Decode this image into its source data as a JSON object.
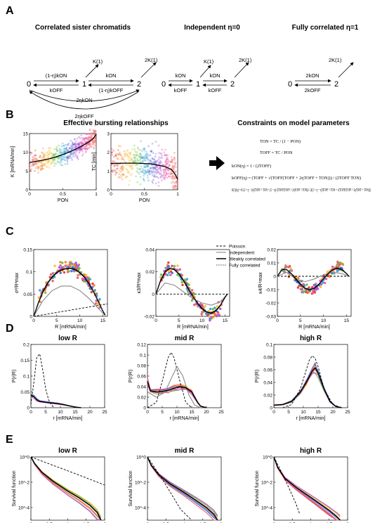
{
  "panels": {
    "a": {
      "label": "A",
      "titles": [
        "Correlated sister chromatids",
        "Independent η=0",
        "Fully correlated η=1"
      ],
      "states": [
        "0",
        "1",
        "2"
      ],
      "rates": {
        "k01_corr": "(1-η)kON",
        "k10": "kOFF",
        "k12": "kON",
        "k21_corr": "(1-η)kOFF",
        "k02_corr": "2ηkON",
        "k20_corr": "2ηkOFF",
        "K1": "K(1)",
        "K2": "2K(1)",
        "k_on": "kON",
        "k_off": "kOFF",
        "k2on": "2kON",
        "k2off": "2kOFF"
      }
    },
    "b": {
      "label": "B",
      "title_left": "Effective bursting relationships",
      "title_right": "Constraints on model parameters",
      "left_ylabel": "K [mRNA/min]",
      "right_ylabel": "TC [min]",
      "xlabel": "PON",
      "eq1": "TON = TC / (1 − PON)",
      "eq2": "TOFF = TC / PON",
      "eq3": "kON(η) = 1 / (2TOFF)",
      "eq4": "kOFF(η) = (TOFF + √(TOFF(TOFF + 2ηTOFF + TON))) / (2TOFF TON)",
      "eq5": "K(1)(η) = K (2 + η − 2η²)TOFF + TON + (2 − η)√(TOFF(TOFF + 2ηTOFF + TON)) / 2((1 + η − η²)TOFF + TON + √(TOFF(TOFF + 2ηTOFF + TON)))"
    },
    "c": {
      "label": "C",
      "ylabels": [
        "σ²/R²max",
        "κ3/R³max",
        "κ4/R⁴max"
      ],
      "xlabel": "R [mRNA/min]",
      "legend": [
        "Poisson",
        "Independent",
        "Weakly correlated",
        "Fully correlated"
      ]
    },
    "d": {
      "label": "D",
      "titles": [
        "low R",
        "mid R",
        "high R"
      ],
      "ylabel": "P(r|R)",
      "xlabel": "r [mRNA/min]"
    },
    "e": {
      "label": "E",
      "titles": [
        "low R",
        "mid R",
        "high R"
      ],
      "ylabel": "Survival function",
      "xlabel": "Inter-initiation interval [min]"
    }
  },
  "chart_data": [
    {
      "type": "scatter",
      "panel": "B-left",
      "xlabel": "PON",
      "ylabel": "K [mRNA/min]",
      "xlim": [
        0,
        1
      ],
      "ylim": [
        0,
        15
      ],
      "xticks": [
        0,
        0.5,
        1
      ],
      "yticks": [
        0,
        5,
        10,
        15
      ],
      "fit": {
        "x": [
          0,
          0.1,
          0.2,
          0.3,
          0.4,
          0.5,
          0.6,
          0.7,
          0.8,
          0.9,
          0.95,
          1
        ],
        "y": [
          7.3,
          7.6,
          7.9,
          8.3,
          8.8,
          9.4,
          10.1,
          10.9,
          11.8,
          12.9,
          13.6,
          14.8
        ]
      }
    },
    {
      "type": "scatter",
      "panel": "B-right",
      "xlabel": "PON",
      "ylabel": "TC [min]",
      "xlim": [
        0,
        1
      ],
      "ylim": [
        0,
        3
      ],
      "xticks": [
        0,
        0.5,
        1
      ],
      "yticks": [
        0,
        1,
        2,
        3
      ],
      "fit": {
        "x": [
          0,
          0.2,
          0.4,
          0.6,
          0.8,
          0.9,
          0.95,
          1
        ],
        "y": [
          1.4,
          1.42,
          1.42,
          1.38,
          1.25,
          1.1,
          0.9,
          0.55
        ]
      }
    },
    {
      "type": "line",
      "panel": "C-variance",
      "xlabel": "R [mRNA/min]",
      "ylabel": "σ²/R²max",
      "xlim": [
        0,
        16
      ],
      "ylim": [
        0,
        0.15
      ],
      "xticks": [
        0,
        5,
        10,
        15
      ],
      "yticks": [
        0,
        0.05,
        0.1,
        0.15
      ],
      "series": [
        {
          "name": "Poisson",
          "x": [
            0,
            16
          ],
          "y": [
            0,
            0.028
          ]
        },
        {
          "name": "Independent",
          "x": [
            0,
            2,
            4,
            6,
            8,
            10,
            12,
            14,
            15.5
          ],
          "y": [
            0,
            0.035,
            0.058,
            0.068,
            0.068,
            0.058,
            0.04,
            0.018,
            0.002
          ]
        },
        {
          "name": "Weakly correlated",
          "x": [
            0,
            1,
            2,
            3,
            4,
            5,
            6,
            7,
            8,
            9,
            10,
            11,
            12,
            13,
            14,
            15,
            15.5
          ],
          "y": [
            0,
            0.03,
            0.055,
            0.074,
            0.088,
            0.098,
            0.104,
            0.107,
            0.108,
            0.105,
            0.098,
            0.088,
            0.073,
            0.055,
            0.034,
            0.012,
            0.003
          ]
        },
        {
          "name": "Fully correlated",
          "x": [
            0,
            1,
            2,
            3,
            4,
            5,
            6,
            7,
            8,
            9,
            10,
            11,
            12,
            13,
            14,
            15,
            15.5
          ],
          "y": [
            0,
            0.032,
            0.058,
            0.077,
            0.091,
            0.1,
            0.106,
            0.11,
            0.111,
            0.108,
            0.101,
            0.09,
            0.075,
            0.056,
            0.035,
            0.012,
            0.003
          ]
        }
      ]
    },
    {
      "type": "line",
      "panel": "C-skew",
      "xlabel": "R [mRNA/min]",
      "ylabel": "κ3/R³max",
      "xlim": [
        0,
        16
      ],
      "ylim": [
        -0.02,
        0.04
      ],
      "xticks": [
        0,
        5,
        10,
        15
      ],
      "yticks": [
        -0.02,
        0,
        0.02,
        0.04
      ],
      "series": [
        {
          "name": "Poisson",
          "x": [
            0,
            16
          ],
          "y": [
            0,
            0
          ]
        },
        {
          "name": "Independent",
          "x": [
            0,
            2,
            4,
            6,
            8,
            10,
            12,
            14,
            15.5
          ],
          "y": [
            0,
            0.01,
            0.008,
            0.002,
            -0.004,
            -0.008,
            -0.01,
            -0.007,
            0
          ]
        },
        {
          "name": "Weakly correlated",
          "x": [
            0,
            1,
            2,
            3,
            4,
            5,
            6,
            7,
            8,
            9,
            10,
            11,
            12,
            13,
            14,
            15,
            15.5
          ],
          "y": [
            0,
            0.012,
            0.02,
            0.023,
            0.022,
            0.018,
            0.012,
            0.005,
            -0.002,
            -0.008,
            -0.013,
            -0.016,
            -0.017,
            -0.015,
            -0.01,
            -0.003,
            0
          ]
        },
        {
          "name": "Fully correlated",
          "x": [
            0,
            1,
            2,
            3,
            4,
            5,
            6,
            7,
            8,
            9,
            10,
            11,
            12,
            13,
            14,
            15,
            15.5
          ],
          "y": [
            0,
            0.013,
            0.021,
            0.024,
            0.023,
            0.019,
            0.013,
            0.006,
            -0.002,
            -0.009,
            -0.014,
            -0.017,
            -0.018,
            -0.016,
            -0.011,
            -0.003,
            0
          ]
        }
      ]
    },
    {
      "type": "line",
      "panel": "C-kurt",
      "xlabel": "R [mRNA/min]",
      "ylabel": "κ4/R⁴max",
      "xlim": [
        0,
        16
      ],
      "ylim": [
        -0.03,
        0.02
      ],
      "xticks": [
        0,
        5,
        10,
        15
      ],
      "yticks": [
        -0.03,
        -0.02,
        -0.01,
        0,
        0.01,
        0.02
      ],
      "series": [
        {
          "name": "Poisson",
          "x": [
            0,
            16
          ],
          "y": [
            0,
            0
          ]
        },
        {
          "name": "Independent",
          "x": [
            0,
            2,
            4,
            6,
            8,
            10,
            12,
            14,
            15.5
          ],
          "y": [
            0,
            0.003,
            -0.002,
            -0.004,
            -0.002,
            0.001,
            0.003,
            0.002,
            0
          ]
        },
        {
          "name": "Weakly correlated",
          "x": [
            0,
            1,
            2,
            3,
            4,
            5,
            6,
            7,
            8,
            9,
            10,
            11,
            12,
            13,
            14,
            15,
            15.5
          ],
          "y": [
            0,
            0.005,
            0.005,
            0.002,
            -0.002,
            -0.006,
            -0.009,
            -0.01,
            -0.009,
            -0.006,
            -0.002,
            0.002,
            0.005,
            0.006,
            0.005,
            0.002,
            0
          ]
        },
        {
          "name": "Fully correlated",
          "x": [
            0,
            1,
            2,
            3,
            4,
            5,
            6,
            7,
            8,
            9,
            10,
            11,
            12,
            13,
            14,
            15,
            15.5
          ],
          "y": [
            0,
            0.006,
            0.005,
            0.002,
            -0.003,
            -0.007,
            -0.01,
            -0.011,
            -0.01,
            -0.007,
            -0.002,
            0.002,
            0.005,
            0.007,
            0.006,
            0.002,
            0
          ]
        }
      ]
    },
    {
      "type": "line",
      "panel": "D-low",
      "xlabel": "r [mRNA/min]",
      "ylabel": "P(r|R)",
      "xlim": [
        0,
        25
      ],
      "ylim": [
        0,
        0.2
      ],
      "xticks": [
        0,
        5,
        10,
        15,
        20,
        25
      ],
      "yticks": [
        0,
        0.05,
        0.1,
        0.15,
        0.2
      ],
      "series": [
        {
          "name": "Poisson",
          "x": [
            0,
            1,
            2,
            3,
            4,
            5,
            6,
            7,
            8
          ],
          "y": [
            0.01,
            0.08,
            0.16,
            0.17,
            0.12,
            0.06,
            0.025,
            0.008,
            0
          ]
        },
        {
          "name": "Weakly correlated",
          "x": [
            0,
            1,
            2,
            3,
            5,
            7,
            9,
            11,
            13,
            15,
            17
          ],
          "y": [
            0.04,
            0.035,
            0.025,
            0.02,
            0.017,
            0.015,
            0.013,
            0.01,
            0.006,
            0.002,
            0
          ]
        }
      ]
    },
    {
      "type": "line",
      "panel": "D-mid",
      "xlabel": "r [mRNA/min]",
      "ylabel": "P(r|R)",
      "xlim": [
        0,
        25
      ],
      "ylim": [
        0,
        0.12
      ],
      "xticks": [
        0,
        5,
        10,
        15,
        20,
        25
      ],
      "yticks": [
        0,
        0.02,
        0.04,
        0.06,
        0.08,
        0.1,
        0.12
      ],
      "series": [
        {
          "name": "Poisson",
          "x": [
            0,
            3,
            5,
            7,
            8,
            9,
            11,
            13,
            15
          ],
          "y": [
            0,
            0.01,
            0.05,
            0.095,
            0.105,
            0.095,
            0.05,
            0.01,
            0
          ]
        },
        {
          "name": "Independent",
          "x": [
            0,
            3,
            6,
            8,
            10,
            12,
            14,
            16,
            18
          ],
          "y": [
            0.03,
            0.02,
            0.03,
            0.055,
            0.078,
            0.06,
            0.025,
            0.005,
            0
          ]
        },
        {
          "name": "Weakly correlated",
          "x": [
            0,
            1,
            3,
            5,
            7,
            9,
            11,
            13,
            15,
            16,
            17,
            18,
            20
          ],
          "y": [
            0.05,
            0.032,
            0.03,
            0.031,
            0.033,
            0.037,
            0.04,
            0.038,
            0.03,
            0.02,
            0.01,
            0.003,
            0
          ]
        }
      ]
    },
    {
      "type": "line",
      "panel": "D-high",
      "xlabel": "r [mRNA/min]",
      "ylabel": "P(r|R)",
      "xlim": [
        0,
        25
      ],
      "ylim": [
        0,
        0.1
      ],
      "xticks": [
        0,
        5,
        10,
        15,
        20,
        25
      ],
      "yticks": [
        0,
        0.02,
        0.04,
        0.06,
        0.08,
        0.1
      ],
      "series": [
        {
          "name": "Poisson",
          "x": [
            3,
            6,
            9,
            11,
            12,
            13,
            14,
            15,
            17,
            20,
            23
          ],
          "y": [
            0,
            0.005,
            0.03,
            0.06,
            0.075,
            0.082,
            0.078,
            0.065,
            0.03,
            0.005,
            0
          ]
        },
        {
          "name": "Weakly correlated",
          "x": [
            0,
            3,
            6,
            9,
            11,
            13,
            14,
            15,
            17,
            19,
            21,
            23
          ],
          "y": [
            0.004,
            0.005,
            0.01,
            0.025,
            0.04,
            0.058,
            0.063,
            0.055,
            0.03,
            0.01,
            0.002,
            0
          ]
        }
      ]
    },
    {
      "type": "line",
      "panel": "E-low",
      "xlabel": "Inter-initiation interval [min]",
      "ylabel": "Survival function",
      "xlim": [
        0,
        2
      ],
      "yscale": "log",
      "xticks": [
        0,
        0.5,
        1,
        1.5,
        2
      ],
      "yticks": [
        "10^0",
        "10^-2",
        "10^-4"
      ],
      "series": [
        {
          "name": "Poisson",
          "x": [
            0,
            0.5,
            1,
            1.5,
            2
          ],
          "y": [
            1,
            0.28,
            0.08,
            0.022,
            0.006
          ]
        },
        {
          "name": "Weakly correlated",
          "x": [
            0,
            0.1,
            0.3,
            0.6,
            1,
            1.3,
            1.6,
            1.8,
            1.9
          ],
          "y": [
            1,
            0.3,
            0.06,
            0.012,
            0.002,
            0.0006,
            0.00015,
            4e-05,
            1e-05
          ]
        }
      ]
    },
    {
      "type": "line",
      "panel": "E-mid",
      "xlabel": "Inter-initiation interval [min]",
      "ylabel": "Survival function",
      "xlim": [
        0,
        2
      ],
      "yscale": "log",
      "xticks": [
        0,
        0.5,
        1,
        1.5,
        2
      ],
      "yticks": [
        "10^0",
        "10^-2",
        "10^-4"
      ],
      "series": [
        {
          "name": "Poisson",
          "x": [
            0,
            0.3,
            0.6,
            0.9,
            1.2
          ],
          "y": [
            1,
            0.05,
            0.002,
            7e-05,
            3e-06
          ]
        },
        {
          "name": "Weakly correlated",
          "x": [
            0,
            0.1,
            0.3,
            0.6,
            1,
            1.3,
            1.6,
            1.8,
            1.9
          ],
          "y": [
            1,
            0.22,
            0.04,
            0.008,
            0.0015,
            0.0004,
            0.0001,
            3e-05,
            1e-05
          ]
        }
      ]
    },
    {
      "type": "line",
      "panel": "E-high",
      "xlabel": "Inter-initiation interval [min]",
      "ylabel": "Survival function",
      "xlim": [
        0,
        2
      ],
      "yscale": "log",
      "xticks": [
        0,
        0.5,
        1,
        1.5,
        2
      ],
      "yticks": [
        "10^0",
        "10^-2",
        "10^-4"
      ],
      "series": [
        {
          "name": "Poisson",
          "x": [
            0,
            0.2,
            0.4,
            0.6,
            0.7
          ],
          "y": [
            1,
            0.07,
            0.004,
            0.0002,
            3e-05
          ]
        },
        {
          "name": "Weakly correlated",
          "x": [
            0,
            0.1,
            0.3,
            0.6,
            0.9,
            1.2,
            1.5,
            1.7,
            1.8
          ],
          "y": [
            1,
            0.15,
            0.02,
            0.004,
            0.001,
            0.00025,
            6e-05,
            2e-05,
            1e-05
          ]
        }
      ]
    }
  ]
}
